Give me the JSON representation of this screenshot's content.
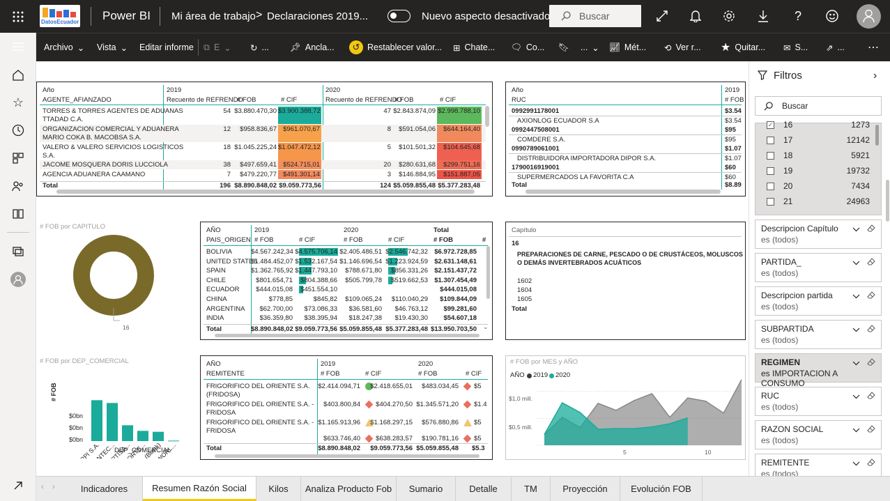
{
  "topbar": {
    "logo_text": "DatosEcuador",
    "app_name": "Power BI",
    "workspace": "Mi área de trabajo",
    "report": "Declaraciones 2019...",
    "toggle_label": "Nuevo aspecto desactivado",
    "search_placeholder": "Buscar"
  },
  "commands": {
    "archivo": "Archivo",
    "vista": "Vista",
    "editar": "Editar informe",
    "e": "E",
    "dots": "...",
    "anclar": "Ancla...",
    "restablecer": "Restablecer valor...",
    "chat": "Chate...",
    "co": "Co...",
    "metrics": "Mét...",
    "ver": "Ver r...",
    "quitar": "Quitar...",
    "s": "S..."
  },
  "table1": {
    "year_label": "Año",
    "row_header": "AGENTE_AFIANZADO",
    "y2019": "2019",
    "y2020": "2020",
    "c1": "Recuento de REFRENDO",
    "c2": "# FOB",
    "c3": "# CIF",
    "c4": "Recuento de REFRENDO",
    "c5": "# FOB",
    "c6": "# CIF",
    "rows": [
      {
        "l1": "TORRES & TORRES AGENTES DE ADUANAS",
        "l2": "TTADAD C.A.",
        "a": "54",
        "b": "$3.880.470,30",
        "c": "$3.900.388,72",
        "d": "47",
        "e": "$2.843.874,09",
        "f": "$2.998.788,10",
        "cc": "#1aab9b",
        "fc": "#5cb85c"
      },
      {
        "l1": "ORGANIZACION COMERCIAL Y ADUANERA",
        "l2": "MARIO COKA B. MACOBSA S.A.",
        "a": "12",
        "b": "$958.836,67",
        "c": "$961.070,67",
        "d": "8",
        "e": "$591.054,06",
        "f": "$644.164,40",
        "cc": "#f7a24b",
        "fc": "#f08a5d"
      },
      {
        "l1": "VALERO & VALERO SERVICIOS LOGISTICOS",
        "l2": "S.A.",
        "a": "18",
        "b": "$1.045.225,24",
        "c": "$1.047.472,12",
        "d": "5",
        "e": "$101.501,32",
        "f": "$104.645,68",
        "cc": "#f5964b",
        "fc": "#ee6050"
      },
      {
        "l1": "JACOME MOSQUERA DORIS LUCCIOLA",
        "l2": "",
        "a": "38",
        "b": "$497.659,41",
        "c": "$524.715,01",
        "d": "20",
        "e": "$280.631,68",
        "f": "$299.751,16",
        "cc": "#f48f5a",
        "fc": "#ef6b55"
      },
      {
        "l1": "AGENCIA ADUANERA CAAMANO",
        "l2": "",
        "a": "7",
        "b": "$479.220,77",
        "c": "$491.301,14",
        "d": "3",
        "e": "$146.884,95",
        "f": "$151.887,05",
        "cc": "#f28a5c",
        "fc": "#ec5448"
      }
    ],
    "total": {
      "l": "Total",
      "a": "196",
      "b": "$8.890.848,02",
      "c": "$9.059.773,56",
      "d": "124",
      "e": "$5.059.855,48",
      "f": "$5.377.283,48"
    }
  },
  "table2": {
    "year_label": "Año",
    "row_header": "RUC",
    "y2019": "2019",
    "col": "# FOB",
    "rows": [
      {
        "l": "0992991178001",
        "v": "$3.54",
        "b": true
      },
      {
        "l": "AXIONLOG ECUADOR S.A",
        "v": "$3.54",
        "b": false
      },
      {
        "l": "0992447508001",
        "v": "$95",
        "b": true
      },
      {
        "l": "COMDERE S.A.",
        "v": "$95",
        "b": false
      },
      {
        "l": "0990789061001",
        "v": "$1.07",
        "b": true
      },
      {
        "l": "DISTRIBUIDORA IMPORTADORA DIPOR S.A.",
        "v": "$1.07",
        "b": false
      },
      {
        "l": "1790016919001",
        "v": "$60",
        "b": true
      },
      {
        "l": "SUPERMERCADOS LA FAVORITA C.A",
        "v": "$60",
        "b": false
      }
    ],
    "total": "Total",
    "total_v": "$8.89"
  },
  "donut": {
    "title": "# FOB por CAPITULO",
    "label": "16"
  },
  "table3": {
    "year_label": "AÑO",
    "row_header": "PAIS_ORIGEN",
    "y2019": "2019",
    "y2020": "2020",
    "ytot": "Total",
    "h1": "# FOB",
    "h2": "# CIF",
    "h3": "# FOB",
    "h4": "# CIF",
    "h5": "# FOB",
    "rows": [
      {
        "c": "BOLIVIA",
        "a": "$4.567.242,34",
        "b": "$4.575.706,14",
        "d": "$2.405.486,51",
        "e": "$2.546.742,32",
        "t": "$6.972.728,85",
        "bw": 1.0,
        "ew": 1.0
      },
      {
        "c": "UNITED STATES",
        "a": "$1.484.452,07",
        "b": "$1.532.167,54",
        "d": "$1.146.696,54",
        "e": "$1.223.924,59",
        "t": "$2.631.148,61",
        "bw": 0.33,
        "ew": 0.48
      },
      {
        "c": "SPAIN",
        "a": "$1.362.765,92",
        "b": "$1.447.793,10",
        "d": "$788.671,80",
        "e": "$856.331,26",
        "t": "$2.151.437,72",
        "bw": 0.32,
        "ew": 0.34
      },
      {
        "c": "CHILE",
        "a": "$801.654,71",
        "b": "$804.388,66",
        "d": "$505.799,78",
        "e": "$519.662,53",
        "t": "$1.307.454,49",
        "bw": 0.18,
        "ew": 0.2
      },
      {
        "c": "ECUADOR",
        "a": "$444.015,08",
        "b": "$451.554,10",
        "d": "",
        "e": "",
        "t": "$444.015,08",
        "bw": 0.1,
        "ew": 0
      },
      {
        "c": "CHINA",
        "a": "$778,85",
        "b": "$845,82",
        "d": "$109.065,24",
        "e": "$110.040,29",
        "t": "$109.844,09",
        "bw": 0,
        "ew": 0
      },
      {
        "c": "ARGENTINA",
        "a": "$62.700,00",
        "b": "$73.086,33",
        "d": "$36.581,60",
        "e": "$46.763,12",
        "t": "$99.281,60",
        "bw": 0,
        "ew": 0
      },
      {
        "c": "INDIA",
        "a": "$36.359,80",
        "b": "$38.395,94",
        "d": "$18.247,38",
        "e": "$19.430,30",
        "t": "$54.607,18",
        "bw": 0,
        "ew": 0
      }
    ],
    "total": {
      "c": "Total",
      "a": "$8.890.848,02",
      "b": "$9.059.773,56",
      "d": "$5.059.855,48",
      "e": "$5.377.283,48",
      "t": "$13.950.703,50"
    }
  },
  "slicer": {
    "title": "Capítulo",
    "top": "16",
    "desc": "PREPARACIONES DE CARNE, PESCADO O DE CRUSTÁCEOS, MOLUSCOS O DEMÁS INVERTEBRADOS ACUÁTICOS",
    "items": [
      "1602",
      "1604",
      "1605"
    ],
    "total": "Total"
  },
  "bar_chart": {
    "title": "# FOB por DEP_COMERCIAL",
    "xlabel": "DEP_COMERCIAL",
    "ylabel": "# FOB",
    "ticks": [
      "$0bn",
      "$0bn",
      "$0bn"
    ]
  },
  "table4": {
    "year_label": "AÑO",
    "row_header": "REMITENTE",
    "y2019": "2019",
    "y2020": "2020",
    "h1": "# FOB",
    "h2": "# CIF",
    "h3": "# FOB",
    "h4": "# CIF",
    "rows": [
      {
        "l1": "FRIGORIFICO DEL ORIENTE S.A.",
        "l2": "(FRIDOSA)",
        "a": "$2.414.094,71",
        "b": "$2.418.655,01",
        "c": "$483.034,45",
        "d": "$5",
        "k": "circle",
        "kc": "#5cb85c"
      },
      {
        "l1": "FRIGORIFICO DEL ORIENTE S.A. -",
        "l2": "FRIDOSA",
        "a": "$403.800,84",
        "b": "$404.270,50",
        "c": "$1.345.571,20",
        "d": "$1.4",
        "k": "diamond",
        "kc": "#e8705e"
      },
      {
        "l1": "FRIGORIFICO DEL ORIENTE S.A. -",
        "l2": "FRIDOSA",
        "a": "$1.165.913,96",
        "b": "$1.168.297,15",
        "c": "$576.880,86",
        "d": "$5",
        "k": "triangle",
        "kc": "#f2c46d"
      },
      {
        "l1": "",
        "l2": "",
        "a": "$633.746,40",
        "b": "$638.283,57",
        "c": "$190.781,16",
        "d": "$5",
        "k": "diamond",
        "kc": "#e8705e"
      }
    ],
    "total": {
      "l": "Total",
      "a": "$8.890.848,02",
      "b": "$9.059.773,56",
      "c": "$5.059.855,48",
      "d": "$5.3"
    }
  },
  "area_chart": {
    "title": "# FOB por MES y AÑO",
    "legend_title": "AÑO",
    "s1": "2019",
    "s2": "2020",
    "y1": "$1,0 mill.",
    "y2": "$0,5 mill.",
    "x1": "5",
    "x2": "10"
  },
  "chart_data": {
    "type": "area",
    "x": [
      1,
      2,
      3,
      4,
      5,
      6,
      7,
      8,
      9,
      10,
      11,
      12
    ],
    "ylim": [
      0,
      1400000
    ],
    "series": [
      {
        "name": "2019",
        "values": [
          200000,
          520000,
          330000,
          780000,
          650000,
          830000,
          960000,
          520000,
          880000,
          820000,
          600000,
          1220000
        ]
      },
      {
        "name": "2020",
        "values": [
          200000,
          790000,
          610000,
          300000,
          310000,
          310000,
          340000,
          400000,
          510000,
          null,
          null,
          null
        ]
      }
    ]
  },
  "filters": {
    "title": "Filtros",
    "search": "Buscar",
    "list": [
      {
        "v": "16",
        "n": "1273",
        "checked": true
      },
      {
        "v": "17",
        "n": "12142",
        "checked": false
      },
      {
        "v": "18",
        "n": "5921",
        "checked": false
      },
      {
        "v": "19",
        "n": "19732",
        "checked": false
      },
      {
        "v": "20",
        "n": "7434",
        "checked": false
      },
      {
        "v": "21",
        "n": "24963",
        "checked": false
      }
    ],
    "cards": [
      {
        "t": "Descripcion Capítulo",
        "v": "es (todos)"
      },
      {
        "t": "PARTIDA_",
        "v": "es (todos)"
      },
      {
        "t": "Descripcion partida",
        "v": "es (todos)"
      },
      {
        "t": "SUBPARTIDA",
        "v": "es (todos)"
      },
      {
        "t": "REGIMEN",
        "v": "es IMPORTACION A CONSUMO"
      },
      {
        "t": "RUC",
        "v": "es (todos)"
      },
      {
        "t": "RAZON SOCIAL",
        "v": "es (todos)"
      },
      {
        "t": "REMITENTE",
        "v": "es (todos)"
      }
    ]
  },
  "tabs": [
    "Indicadores",
    "Resumen Razón Social",
    "Kilos",
    "Analiza Producto Fob",
    "Sumario",
    "Detalle",
    "TM",
    "Proyección",
    "Evolución FOB"
  ],
  "bar_data": {
    "categories": [
      "INARPI S.A.",
      "CONTEC...",
      "FERTISA...",
      "NAPORTE...",
      "(Blank)",
      "DPWORL..."
    ],
    "values": [
      4.4,
      4.1,
      1.7,
      1.1,
      1.0,
      0.05
    ]
  },
  "colors": {
    "accent": "#1aab9b",
    "donut": "#7a6a2a",
    "dark": "#252423",
    "series2019": "#3c3c3c",
    "series2020": "#1aab9b"
  }
}
